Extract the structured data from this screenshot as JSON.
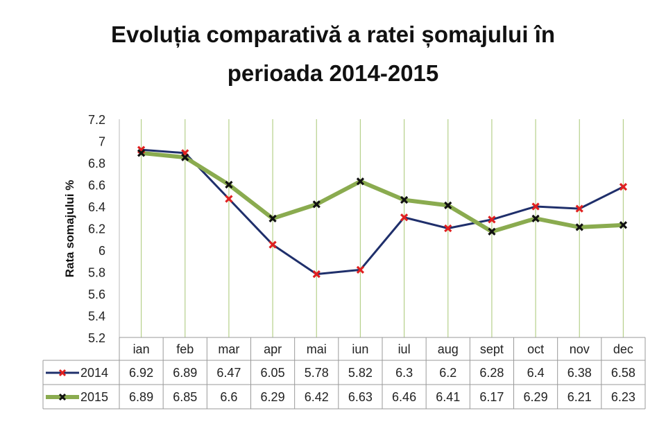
{
  "title_line1": "Evoluția comparativă a ratei șomajului în",
  "title_line2": "perioada 2014-2015",
  "chart_data": {
    "type": "line",
    "title": "Evoluția comparativă a ratei șomajului în perioada 2014-2015",
    "xlabel": "",
    "ylabel": "Rata somajului %",
    "ylim": [
      5.2,
      7.2
    ],
    "yticks": [
      "7.2",
      "7",
      "6.8",
      "6.6",
      "6.4",
      "6.2",
      "6",
      "5.8",
      "5.6",
      "5.4",
      "5.2"
    ],
    "categories": [
      "ian",
      "feb",
      "mar",
      "apr",
      "mai",
      "iun",
      "iul",
      "aug",
      "sept",
      "oct",
      "nov",
      "dec"
    ],
    "grid": "vertical",
    "legend": "data-table",
    "series": [
      {
        "name": "2014",
        "values": [
          6.92,
          6.89,
          6.47,
          6.05,
          5.78,
          5.82,
          6.3,
          6.2,
          6.28,
          6.4,
          6.38,
          6.58
        ],
        "labels": [
          "6.92",
          "6.89",
          "6.47",
          "6.05",
          "5.78",
          "5.82",
          "6.3",
          "6.2",
          "6.28",
          "6.4",
          "6.38",
          "6.58"
        ],
        "color": "#1f2f6b",
        "marker_color": "#e02020"
      },
      {
        "name": "2015",
        "values": [
          6.89,
          6.85,
          6.6,
          6.29,
          6.42,
          6.63,
          6.46,
          6.41,
          6.17,
          6.29,
          6.21,
          6.23
        ],
        "labels": [
          "6.89",
          "6.85",
          "6.6",
          "6.29",
          "6.42",
          "6.63",
          "6.46",
          "6.41",
          "6.17",
          "6.29",
          "6.21",
          "6.23"
        ],
        "color": "#8aab4f",
        "marker_color": "#111111"
      }
    ]
  }
}
